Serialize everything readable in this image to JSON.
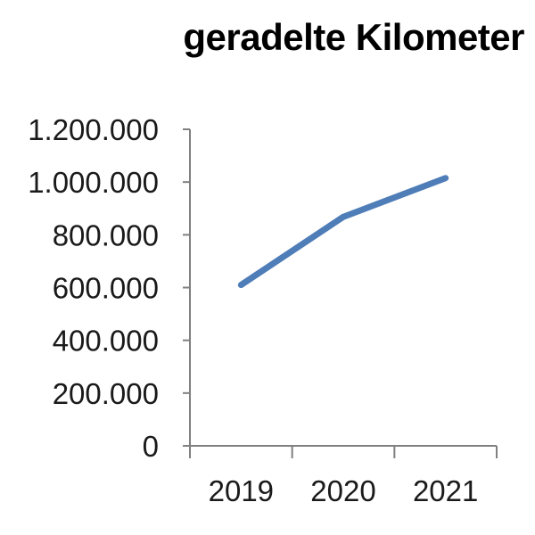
{
  "chart_data": {
    "type": "line",
    "title": "geradelte Kilometer",
    "categories": [
      "2019",
      "2020",
      "2021"
    ],
    "series": [
      {
        "values": [
          610000,
          868000,
          1015000
        ]
      }
    ],
    "ylim": [
      0,
      1200000
    ],
    "yticks": [
      {
        "value": 0,
        "label": "0"
      },
      {
        "value": 200000,
        "label": "200.000"
      },
      {
        "value": 400000,
        "label": "400.000"
      },
      {
        "value": 600000,
        "label": "600.000"
      },
      {
        "value": 800000,
        "label": "800.000"
      },
      {
        "value": 1000000,
        "label": "1.000.000"
      },
      {
        "value": 1200000,
        "label": "1.200.000"
      }
    ],
    "grid": false,
    "legend": "none",
    "line_color": "#4f7db8",
    "axis_color": "#808080"
  }
}
